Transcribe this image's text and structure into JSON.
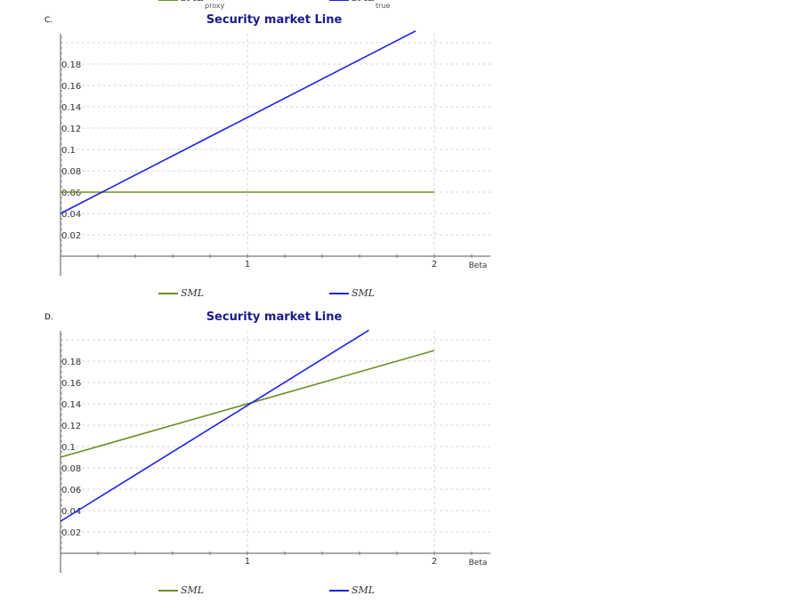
{
  "top_legend": {
    "items": [
      {
        "main": "SML",
        "sub": "proxy",
        "color": "#6b8e23"
      },
      {
        "main": "SML",
        "sub": "true",
        "color": "#1f1fe6"
      }
    ]
  },
  "chart_data": [
    {
      "option": "C.",
      "type": "line",
      "title": "Security market Line",
      "xlabel": "Beta",
      "ylabel": "",
      "xlim": [
        0,
        2.3
      ],
      "ylim": [
        0,
        0.2
      ],
      "x_ticks": [
        1,
        2
      ],
      "y_ticks": [
        0.02,
        0.04,
        0.06,
        0.08,
        0.1,
        0.12,
        0.14,
        0.16,
        0.18
      ],
      "grid": true,
      "legend_position": "bottom",
      "series": [
        {
          "name": "SML",
          "name_sub": "proxy",
          "color": "#6b8e23",
          "x": [
            0,
            2
          ],
          "y": [
            0.06,
            0.06
          ]
        },
        {
          "name": "SML",
          "name_sub": "true",
          "color": "#1f1fe6",
          "x": [
            0,
            1.9
          ],
          "y": [
            0.04,
            0.211
          ]
        }
      ]
    },
    {
      "option": "D.",
      "type": "line",
      "title": "Security market Line",
      "xlabel": "Beta",
      "ylabel": "",
      "xlim": [
        0,
        2.3
      ],
      "ylim": [
        0,
        0.2
      ],
      "x_ticks": [
        1,
        2
      ],
      "y_ticks": [
        0.02,
        0.04,
        0.06,
        0.08,
        0.1,
        0.12,
        0.14,
        0.16,
        0.18
      ],
      "grid": true,
      "legend_position": "bottom",
      "series": [
        {
          "name": "SML",
          "name_sub": "proxy",
          "color": "#6b8e23",
          "x": [
            0,
            2
          ],
          "y": [
            0.09,
            0.19
          ]
        },
        {
          "name": "SML",
          "name_sub": "true",
          "color": "#1f1fe6",
          "x": [
            0,
            1.65
          ],
          "y": [
            0.03,
            0.209
          ]
        }
      ]
    }
  ]
}
